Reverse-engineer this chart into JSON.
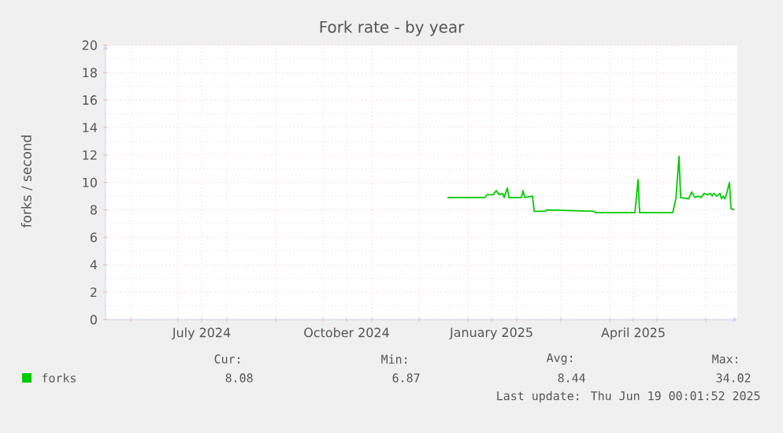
{
  "chart_data": {
    "type": "line",
    "title": "Fork rate - by year",
    "ylabel": "forks / second",
    "xlim": [
      "2024-05-16",
      "2025-06-21"
    ],
    "ylim": [
      0,
      20
    ],
    "xticks": [
      {
        "value": "2024-06-01",
        "label": null
      },
      {
        "value": "2024-07-01",
        "label": null
      },
      {
        "value": "2024-07-16",
        "label": "July 2024"
      },
      {
        "value": "2024-08-01",
        "label": null
      },
      {
        "value": "2024-09-01",
        "label": null
      },
      {
        "value": "2024-10-01",
        "label": null
      },
      {
        "value": "2024-10-16",
        "label": "October 2024"
      },
      {
        "value": "2024-11-01",
        "label": null
      },
      {
        "value": "2024-12-01",
        "label": null
      },
      {
        "value": "2025-01-01",
        "label": null
      },
      {
        "value": "2025-01-16",
        "label": "January 2025"
      },
      {
        "value": "2025-02-01",
        "label": null
      },
      {
        "value": "2025-03-01",
        "label": null
      },
      {
        "value": "2025-04-01",
        "label": null
      },
      {
        "value": "2025-04-16",
        "label": "April 2025"
      },
      {
        "value": "2025-05-01",
        "label": null
      },
      {
        "value": "2025-06-01",
        "label": null
      }
    ],
    "yticks": [
      0,
      2,
      4,
      6,
      8,
      10,
      12,
      14,
      16,
      18,
      20
    ],
    "grid": true,
    "legend": "bottom",
    "x": [
      "2024-12-19",
      "2025-01-12",
      "2025-01-13",
      "2025-01-17",
      "2025-01-19",
      "2025-01-21",
      "2025-01-23",
      "2025-01-24",
      "2025-01-26",
      "2025-01-27",
      "2025-02-04",
      "2025-02-05",
      "2025-02-06",
      "2025-02-11",
      "2025-02-12",
      "2025-02-19",
      "2025-02-20",
      "2025-03-22",
      "2025-03-23",
      "2025-04-17",
      "2025-04-19",
      "2025-04-20",
      "2025-05-11",
      "2025-05-13",
      "2025-05-15",
      "2025-05-16",
      "2025-05-21",
      "2025-05-23",
      "2025-05-25",
      "2025-05-27",
      "2025-05-29",
      "2025-05-31",
      "2025-06-02",
      "2025-06-04",
      "2025-06-05",
      "2025-06-06",
      "2025-06-08",
      "2025-06-10",
      "2025-06-11",
      "2025-06-12",
      "2025-06-13",
      "2025-06-14",
      "2025-06-16",
      "2025-06-17",
      "2025-06-19"
    ],
    "series": [
      {
        "name": "forks",
        "color": "#00cc00",
        "values": [
          8.9,
          8.9,
          9.1,
          9.1,
          9.4,
          9.1,
          9.2,
          8.9,
          9.6,
          8.9,
          8.9,
          9.4,
          8.9,
          9.0,
          7.9,
          7.9,
          8.0,
          7.9,
          7.8,
          7.8,
          10.2,
          7.8,
          7.8,
          8.8,
          11.9,
          8.9,
          8.8,
          9.3,
          8.9,
          9.0,
          8.9,
          9.2,
          9.1,
          9.2,
          9.0,
          9.2,
          9.0,
          9.2,
          8.8,
          9.0,
          8.8,
          9.1,
          10.0,
          8.1,
          8.0
        ]
      }
    ],
    "annotations": [
      "Cur:",
      "8.08",
      "Min:",
      "6.87",
      "Avg:",
      "8.44",
      "Max:",
      "34.02",
      "Last update: Thu Jun 19 00:01:52 2025"
    ]
  }
}
